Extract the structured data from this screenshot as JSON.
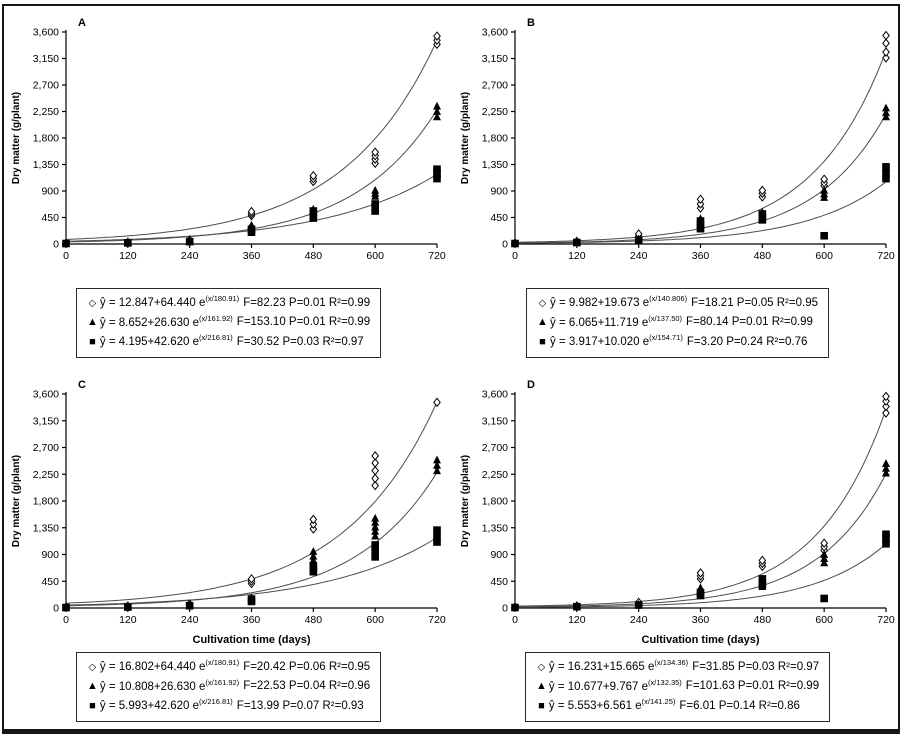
{
  "figure": {
    "y_axis_label": "Dry matter (g/plant)",
    "x_axis_label": "Cultivation time (days)",
    "y_ticks": [
      "0",
      "450",
      "900",
      "1,350",
      "1,800",
      "2,250",
      "2,700",
      "3,150",
      "3,600"
    ],
    "x_ticks": [
      "0",
      "120",
      "240",
      "360",
      "480",
      "600",
      "720"
    ],
    "colors": {
      "curve": "#4d4d4d",
      "marker": "#000000",
      "text": "#000000",
      "border": "#161616"
    }
  },
  "chart_data": [
    {
      "type": "scatter",
      "panel": "A",
      "show_x_label": false,
      "xlabel": "",
      "ylabel": "Dry matter (g/plant)",
      "xlim": [
        0,
        720
      ],
      "ylim": [
        0,
        3600
      ],
      "series": [
        {
          "name": "diamond",
          "marker": "diamond",
          "glyph": "◇",
          "eq_base": "ŷ = 12.847+64.440 e",
          "eq_exp": "(x/180.91)",
          "eq_stats": "F=82.23 P=0.01 R²=0.99",
          "fit": {
            "a": 12.847,
            "b": 64.44,
            "c": 180.91
          },
          "points": [
            [
              0,
              15
            ],
            [
              120,
              30
            ],
            [
              240,
              70
            ],
            [
              360,
              480
            ],
            [
              360,
              515
            ],
            [
              360,
              550
            ],
            [
              480,
              1060
            ],
            [
              480,
              1110
            ],
            [
              480,
              1160
            ],
            [
              600,
              1370
            ],
            [
              600,
              1440
            ],
            [
              600,
              1500
            ],
            [
              600,
              1560
            ],
            [
              720,
              3390
            ],
            [
              720,
              3460
            ],
            [
              720,
              3530
            ]
          ]
        },
        {
          "name": "triangle",
          "marker": "triangle",
          "glyph": "▲",
          "eq_base": "ŷ = 8.652+26.630 e",
          "eq_exp": "(x/161.92)",
          "eq_stats": "F=153.10 P=0.01 R²=0.99",
          "fit": {
            "a": 8.652,
            "b": 26.63,
            "c": 161.92
          },
          "points": [
            [
              0,
              10
            ],
            [
              120,
              22
            ],
            [
              240,
              50
            ],
            [
              360,
              240
            ],
            [
              360,
              280
            ],
            [
              360,
              320
            ],
            [
              480,
              490
            ],
            [
              480,
              540
            ],
            [
              480,
              590
            ],
            [
              600,
              810
            ],
            [
              600,
              860
            ],
            [
              600,
              910
            ],
            [
              720,
              2160
            ],
            [
              720,
              2250
            ],
            [
              720,
              2340
            ]
          ]
        },
        {
          "name": "square",
          "marker": "square",
          "glyph": "■",
          "eq_base": "ŷ = 4.195+42.620 e",
          "eq_exp": "(x/216.81)",
          "eq_stats": "F=30.52 P=0.03 R²=0.97",
          "fit": {
            "a": 4.195,
            "b": 42.62,
            "c": 216.81
          },
          "points": [
            [
              0,
              8
            ],
            [
              120,
              18
            ],
            [
              240,
              40
            ],
            [
              360,
              200
            ],
            [
              360,
              250
            ],
            [
              480,
              440
            ],
            [
              480,
              500
            ],
            [
              480,
              560
            ],
            [
              600,
              560
            ],
            [
              600,
              620
            ],
            [
              600,
              680
            ],
            [
              720,
              1110
            ],
            [
              720,
              1190
            ],
            [
              720,
              1270
            ]
          ]
        }
      ]
    },
    {
      "type": "scatter",
      "panel": "B",
      "show_x_label": false,
      "xlabel": "",
      "ylabel": "Dry matter (g/plant)",
      "xlim": [
        0,
        720
      ],
      "ylim": [
        0,
        3600
      ],
      "series": [
        {
          "name": "diamond",
          "marker": "diamond",
          "glyph": "◇",
          "eq_base": "ŷ = 9.982+19.673 e",
          "eq_exp": "(x/140.806)",
          "eq_stats": "F=18.21 P=0.05 R²=0.95",
          "fit": {
            "a": 9.982,
            "b": 19.673,
            "c": 140.806
          },
          "points": [
            [
              0,
              15
            ],
            [
              120,
              45
            ],
            [
              240,
              130
            ],
            [
              240,
              170
            ],
            [
              360,
              610
            ],
            [
              360,
              680
            ],
            [
              360,
              760
            ],
            [
              480,
              800
            ],
            [
              480,
              860
            ],
            [
              480,
              910
            ],
            [
              600,
              990
            ],
            [
              600,
              1040
            ],
            [
              600,
              1100
            ],
            [
              720,
              3160
            ],
            [
              720,
              3260
            ],
            [
              720,
              3410
            ],
            [
              720,
              3540
            ]
          ]
        },
        {
          "name": "triangle",
          "marker": "triangle",
          "glyph": "▲",
          "eq_base": "ŷ = 6.065+11.719 e",
          "eq_exp": "(x/137.50)",
          "eq_stats": "F=80.14 P=0.01 R²=0.99",
          "fit": {
            "a": 6.065,
            "b": 11.719,
            "c": 137.5
          },
          "points": [
            [
              0,
              10
            ],
            [
              120,
              32
            ],
            [
              240,
              85
            ],
            [
              360,
              310
            ],
            [
              360,
              370
            ],
            [
              360,
              430
            ],
            [
              480,
              430
            ],
            [
              480,
              480
            ],
            [
              480,
              540
            ],
            [
              600,
              790
            ],
            [
              600,
              850
            ],
            [
              600,
              910
            ],
            [
              720,
              2160
            ],
            [
              720,
              2230
            ],
            [
              720,
              2310
            ]
          ]
        },
        {
          "name": "square",
          "marker": "square",
          "glyph": "■",
          "eq_base": "ŷ = 3.917+10.020 e",
          "eq_exp": "(x/154.71)",
          "eq_stats": "F=3.20 P=0.24 R²=0.76",
          "fit": {
            "a": 3.917,
            "b": 10.02,
            "c": 154.71
          },
          "points": [
            [
              0,
              8
            ],
            [
              120,
              25
            ],
            [
              240,
              65
            ],
            [
              360,
              260
            ],
            [
              360,
              320
            ],
            [
              360,
              390
            ],
            [
              480,
              410
            ],
            [
              480,
              460
            ],
            [
              480,
              510
            ],
            [
              600,
              140
            ],
            [
              720,
              1110
            ],
            [
              720,
              1210
            ],
            [
              720,
              1310
            ]
          ]
        }
      ]
    },
    {
      "type": "scatter",
      "panel": "C",
      "show_x_label": true,
      "xlabel": "Cultivation time (days)",
      "ylabel": "Dry matter (g/plant)",
      "xlim": [
        0,
        720
      ],
      "ylim": [
        0,
        3600
      ],
      "series": [
        {
          "name": "diamond",
          "marker": "diamond",
          "glyph": "◇",
          "eq_base": "ŷ = 16.802+64.440 e",
          "eq_exp": "(x/180.91)",
          "eq_stats": "F=20.42 P=0.06 R²=0.95",
          "fit": {
            "a": 16.802,
            "b": 64.44,
            "c": 180.91
          },
          "points": [
            [
              0,
              15
            ],
            [
              120,
              32
            ],
            [
              240,
              65
            ],
            [
              360,
              410
            ],
            [
              360,
              450
            ],
            [
              360,
              490
            ],
            [
              480,
              1330
            ],
            [
              480,
              1410
            ],
            [
              480,
              1490
            ],
            [
              600,
              2060
            ],
            [
              600,
              2180
            ],
            [
              600,
              2310
            ],
            [
              600,
              2440
            ],
            [
              600,
              2560
            ],
            [
              720,
              3460
            ]
          ]
        },
        {
          "name": "triangle",
          "marker": "triangle",
          "glyph": "▲",
          "eq_base": "ŷ = 10.808+26.630 e",
          "eq_exp": "(x/161.92)",
          "eq_stats": "F=22.53 P=0.04 R²=0.96",
          "fit": {
            "a": 10.808,
            "b": 26.63,
            "c": 161.92
          },
          "points": [
            [
              0,
              10
            ],
            [
              120,
              22
            ],
            [
              240,
              48
            ],
            [
              360,
              130
            ],
            [
              360,
              170
            ],
            [
              480,
              720
            ],
            [
              480,
              800
            ],
            [
              480,
              870
            ],
            [
              480,
              950
            ],
            [
              600,
              1210
            ],
            [
              600,
              1290
            ],
            [
              600,
              1360
            ],
            [
              600,
              1440
            ],
            [
              600,
              1510
            ],
            [
              720,
              2310
            ],
            [
              720,
              2400
            ],
            [
              720,
              2490
            ]
          ]
        },
        {
          "name": "square",
          "marker": "square",
          "glyph": "■",
          "eq_base": "ŷ = 5.993+42.620 e",
          "eq_exp": "(x/216.81)",
          "eq_stats": "F=13.99 P=0.07 R²=0.93",
          "fit": {
            "a": 5.993,
            "b": 42.62,
            "c": 216.81
          },
          "points": [
            [
              0,
              8
            ],
            [
              120,
              16
            ],
            [
              240,
              38
            ],
            [
              360,
              110
            ],
            [
              360,
              150
            ],
            [
              480,
              610
            ],
            [
              480,
              660
            ],
            [
              480,
              710
            ],
            [
              600,
              860
            ],
            [
              600,
              960
            ],
            [
              600,
              1060
            ],
            [
              720,
              1110
            ],
            [
              720,
              1210
            ],
            [
              720,
              1310
            ]
          ]
        }
      ]
    },
    {
      "type": "scatter",
      "panel": "D",
      "show_x_label": true,
      "xlabel": "Cultivation time (days)",
      "ylabel": "Dry matter (g/plant)",
      "xlim": [
        0,
        720
      ],
      "ylim": [
        0,
        3600
      ],
      "series": [
        {
          "name": "diamond",
          "marker": "diamond",
          "glyph": "◇",
          "eq_base": "ŷ = 16.231+15.665 e",
          "eq_exp": "(x/134.36)",
          "eq_stats": "F=31.85 P=0.03 R²=0.97",
          "fit": {
            "a": 16.231,
            "b": 15.665,
            "c": 134.36
          },
          "points": [
            [
              0,
              15
            ],
            [
              120,
              35
            ],
            [
              240,
              95
            ],
            [
              360,
              490
            ],
            [
              360,
              540
            ],
            [
              360,
              590
            ],
            [
              480,
              700
            ],
            [
              480,
              750
            ],
            [
              480,
              800
            ],
            [
              600,
              970
            ],
            [
              600,
              1030
            ],
            [
              600,
              1090
            ],
            [
              720,
              3280
            ],
            [
              720,
              3390
            ],
            [
              720,
              3480
            ],
            [
              720,
              3560
            ]
          ]
        },
        {
          "name": "triangle",
          "marker": "triangle",
          "glyph": "▲",
          "eq_base": "ŷ = 10.677+9.767 e",
          "eq_exp": "(x/132.35)",
          "eq_stats": "F=101.63 P=0.01 R²=0.99",
          "fit": {
            "a": 10.677,
            "b": 9.767,
            "c": 132.35
          },
          "points": [
            [
              0,
              10
            ],
            [
              120,
              28
            ],
            [
              240,
              60
            ],
            [
              360,
              260
            ],
            [
              360,
              300
            ],
            [
              360,
              340
            ],
            [
              480,
              360
            ],
            [
              480,
              410
            ],
            [
              600,
              760
            ],
            [
              600,
              830
            ],
            [
              600,
              900
            ],
            [
              720,
              2270
            ],
            [
              720,
              2350
            ],
            [
              720,
              2430
            ]
          ]
        },
        {
          "name": "square",
          "marker": "square",
          "glyph": "■",
          "eq_base": "ŷ = 5.553+6.561 e",
          "eq_exp": "(x/141.25)",
          "eq_stats": "F=6.01 P=0.14 R²=0.86",
          "fit": {
            "a": 5.553,
            "b": 6.561,
            "c": 141.25
          },
          "points": [
            [
              0,
              8
            ],
            [
              120,
              22
            ],
            [
              240,
              50
            ],
            [
              360,
              210
            ],
            [
              360,
              260
            ],
            [
              480,
              390
            ],
            [
              480,
              440
            ],
            [
              480,
              490
            ],
            [
              600,
              160
            ],
            [
              720,
              1080
            ],
            [
              720,
              1160
            ],
            [
              720,
              1240
            ]
          ]
        }
      ]
    }
  ]
}
